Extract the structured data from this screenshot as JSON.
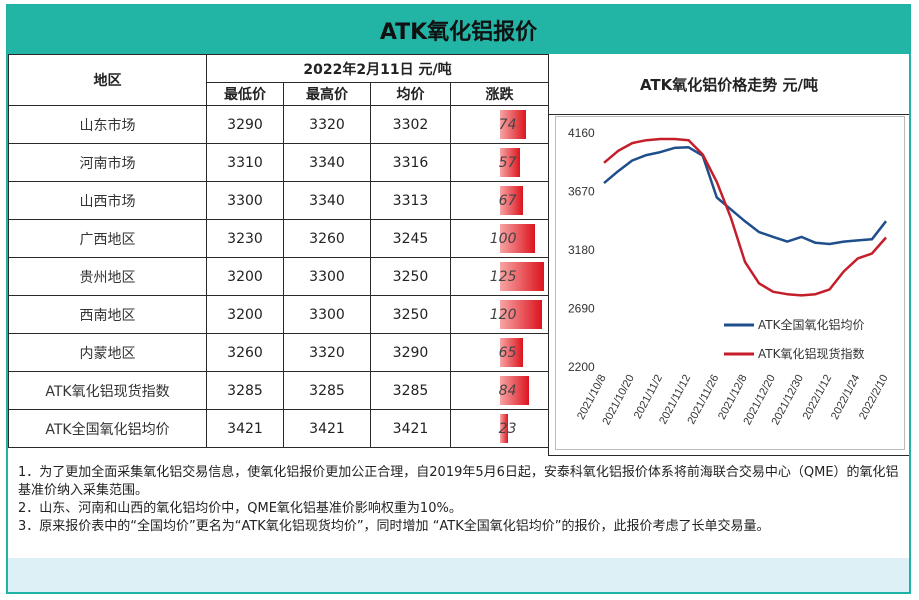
{
  "title": "ATK氧化铝报价",
  "table": {
    "region_header": "地区",
    "date_header": "2022年2月11日 元/吨",
    "col_headers": [
      "最低价",
      "最高价",
      "均价",
      "涨跌"
    ],
    "rows": [
      {
        "region": "山东市场",
        "low": "3290",
        "high": "3320",
        "avg": "3302",
        "change": 74
      },
      {
        "region": "河南市场",
        "low": "3310",
        "high": "3340",
        "avg": "3316",
        "change": 57
      },
      {
        "region": "山西市场",
        "low": "3300",
        "high": "3340",
        "avg": "3313",
        "change": 67
      },
      {
        "region": "广西地区",
        "low": "3230",
        "high": "3260",
        "avg": "3245",
        "change": 100
      },
      {
        "region": "贵州地区",
        "low": "3200",
        "high": "3300",
        "avg": "3250",
        "change": 125
      },
      {
        "region": "西南地区",
        "low": "3200",
        "high": "3300",
        "avg": "3250",
        "change": 120
      },
      {
        "region": "内蒙地区",
        "low": "3260",
        "high": "3320",
        "avg": "3290",
        "change": 65
      },
      {
        "region": "ATK氧化铝现货指数",
        "low": "3285",
        "high": "3285",
        "avg": "3285",
        "change": 84
      },
      {
        "region": "ATK全国氧化铝均价",
        "low": "3421",
        "high": "3421",
        "avg": "3421",
        "change": 23
      }
    ]
  },
  "chart_data": {
    "type": "line",
    "title": "ATK氧化铝价格走势 元/吨",
    "x": [
      "2021/10/8",
      "2021/10/14",
      "2021/10/20",
      "2021/10/27",
      "2021/11/2",
      "2021/11/8",
      "2021/11/12",
      "2021/11/18",
      "2021/11/26",
      "2021/12/2",
      "2021/12/8",
      "2021/12/14",
      "2021/12/20",
      "2021/12/24",
      "2021/12/30",
      "2022/1/6",
      "2022/1/12",
      "2022/1/18",
      "2022/1/24",
      "2022/1/28",
      "2022/2/10"
    ],
    "x_tick_labels": [
      "2021/10/8",
      "2021/10/20",
      "2021/11/2",
      "2021/11/12",
      "2021/11/26",
      "2021/12/8",
      "2021/12/20",
      "2021/12/30",
      "2022/1/12",
      "2022/1/24",
      "2022/2/10"
    ],
    "series": [
      {
        "name": "ATK全国氧化铝均价",
        "color": "#1f4e8c",
        "values": [
          3740,
          3840,
          3930,
          3975,
          4000,
          4035,
          4040,
          3970,
          3620,
          3520,
          3420,
          3330,
          3290,
          3250,
          3290,
          3240,
          3230,
          3250,
          3260,
          3270,
          3421
        ]
      },
      {
        "name": "ATK氧化铝现货指数",
        "color": "#c41e2a",
        "values": [
          3910,
          4010,
          4075,
          4100,
          4110,
          4110,
          4100,
          3980,
          3750,
          3450,
          3080,
          2900,
          2830,
          2810,
          2800,
          2810,
          2850,
          3000,
          3110,
          3150,
          3285
        ]
      }
    ],
    "ylim": [
      2200,
      4160
    ],
    "yticks": [
      2200,
      2690,
      3180,
      3670,
      4160
    ],
    "legend": "right"
  },
  "notes": [
    "1．为了更加全面采集氧化铝交易信息，使氧化铝报价更加公正合理，自2019年5月6日起，安泰科氧化铝报价体系将前海联合交易中心（QME）的氧化铝基准价纳入采集范围。",
    "2．山东、河南和山西的氧化铝均价中，QME氧化铝基准价影响权重为10%。",
    "3．原来报价表中的“全国均价”更名为“ATK氧化铝现货均价”，同时增加 “ATK全国氧化铝均价”的报价，此报价考虑了长单交易量。"
  ]
}
